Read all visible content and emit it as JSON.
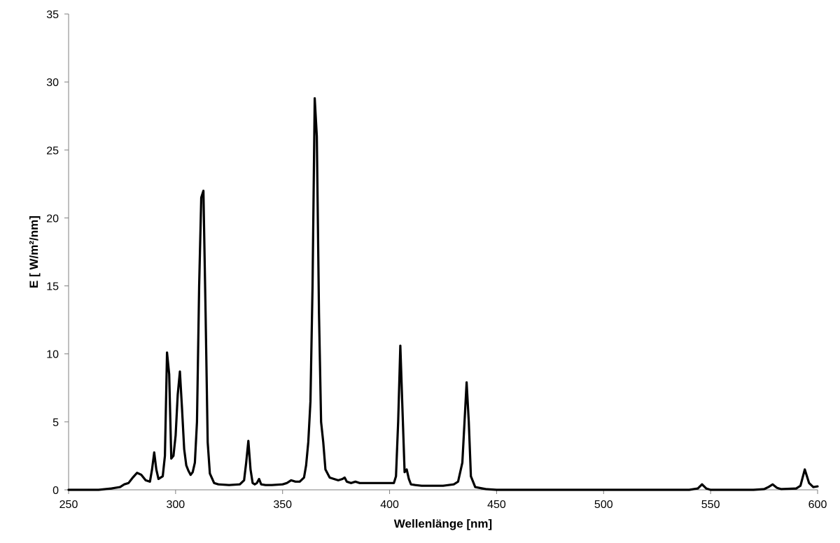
{
  "chart_data": {
    "type": "line",
    "title": "",
    "xlabel": "Wellenlänge [nm]",
    "ylabel": "E [ W/m²/nm]",
    "xlim": [
      250,
      600
    ],
    "ylim": [
      0,
      35
    ],
    "x_ticks": [
      250,
      300,
      350,
      400,
      450,
      500,
      550,
      600
    ],
    "y_ticks": [
      0,
      5,
      10,
      15,
      20,
      25,
      30,
      35
    ],
    "grid": false,
    "legend": "none",
    "line_color": "#000000",
    "series": [
      {
        "x": [
          250,
          264,
          270,
          274,
          276,
          278,
          280,
          282,
          284,
          286,
          288,
          289,
          290,
          291,
          292,
          293,
          294,
          295,
          296,
          297,
          298,
          299,
          300,
          301,
          302,
          303,
          304,
          305,
          306,
          307,
          308,
          309,
          310,
          311,
          312,
          313,
          314,
          315,
          316,
          318,
          320,
          325,
          330,
          332,
          333,
          334,
          335,
          336,
          337,
          338,
          339,
          340,
          342,
          345,
          350,
          352,
          354,
          356,
          358,
          360,
          361,
          362,
          363,
          364,
          365,
          366,
          367,
          368,
          369,
          370,
          372,
          374,
          376,
          378,
          379,
          380,
          382,
          384,
          386,
          390,
          395,
          400,
          402,
          403,
          404,
          405,
          406,
          407,
          408,
          409,
          410,
          412,
          415,
          420,
          425,
          430,
          432,
          434,
          435,
          436,
          437,
          438,
          440,
          445,
          450,
          460,
          480,
          500,
          520,
          540,
          544,
          546,
          548,
          550,
          560,
          570,
          575,
          577,
          579,
          581,
          583,
          590,
          592,
          594,
          596,
          598,
          600
        ],
        "y": [
          0,
          0,
          0.1,
          0.2,
          0.4,
          0.5,
          0.9,
          1.25,
          1.1,
          0.7,
          0.6,
          1.5,
          2.75,
          1.5,
          0.8,
          0.9,
          1.0,
          2.5,
          10.1,
          8.5,
          2.3,
          2.5,
          4.0,
          7.0,
          8.7,
          6.0,
          3.0,
          1.8,
          1.4,
          1.1,
          1.3,
          2.0,
          5.0,
          15.0,
          21.5,
          22.0,
          13.0,
          3.5,
          1.2,
          0.5,
          0.4,
          0.35,
          0.4,
          0.7,
          2.0,
          3.6,
          1.5,
          0.5,
          0.4,
          0.5,
          0.8,
          0.4,
          0.35,
          0.35,
          0.4,
          0.5,
          0.7,
          0.6,
          0.6,
          0.9,
          1.8,
          3.5,
          6.5,
          15.0,
          28.8,
          26.0,
          13.0,
          5.0,
          3.5,
          1.5,
          0.9,
          0.8,
          0.7,
          0.8,
          0.9,
          0.6,
          0.5,
          0.6,
          0.5,
          0.5,
          0.5,
          0.5,
          0.5,
          1.0,
          5.0,
          10.6,
          6.0,
          1.3,
          1.5,
          0.8,
          0.4,
          0.35,
          0.3,
          0.3,
          0.3,
          0.4,
          0.6,
          2.0,
          5.0,
          7.9,
          5.0,
          1.0,
          0.2,
          0.05,
          0,
          0,
          0,
          0,
          0,
          0,
          0.1,
          0.4,
          0.1,
          0,
          0,
          0,
          0.05,
          0.2,
          0.4,
          0.15,
          0.05,
          0.1,
          0.3,
          1.5,
          0.5,
          0.2,
          0.25
        ]
      }
    ]
  }
}
